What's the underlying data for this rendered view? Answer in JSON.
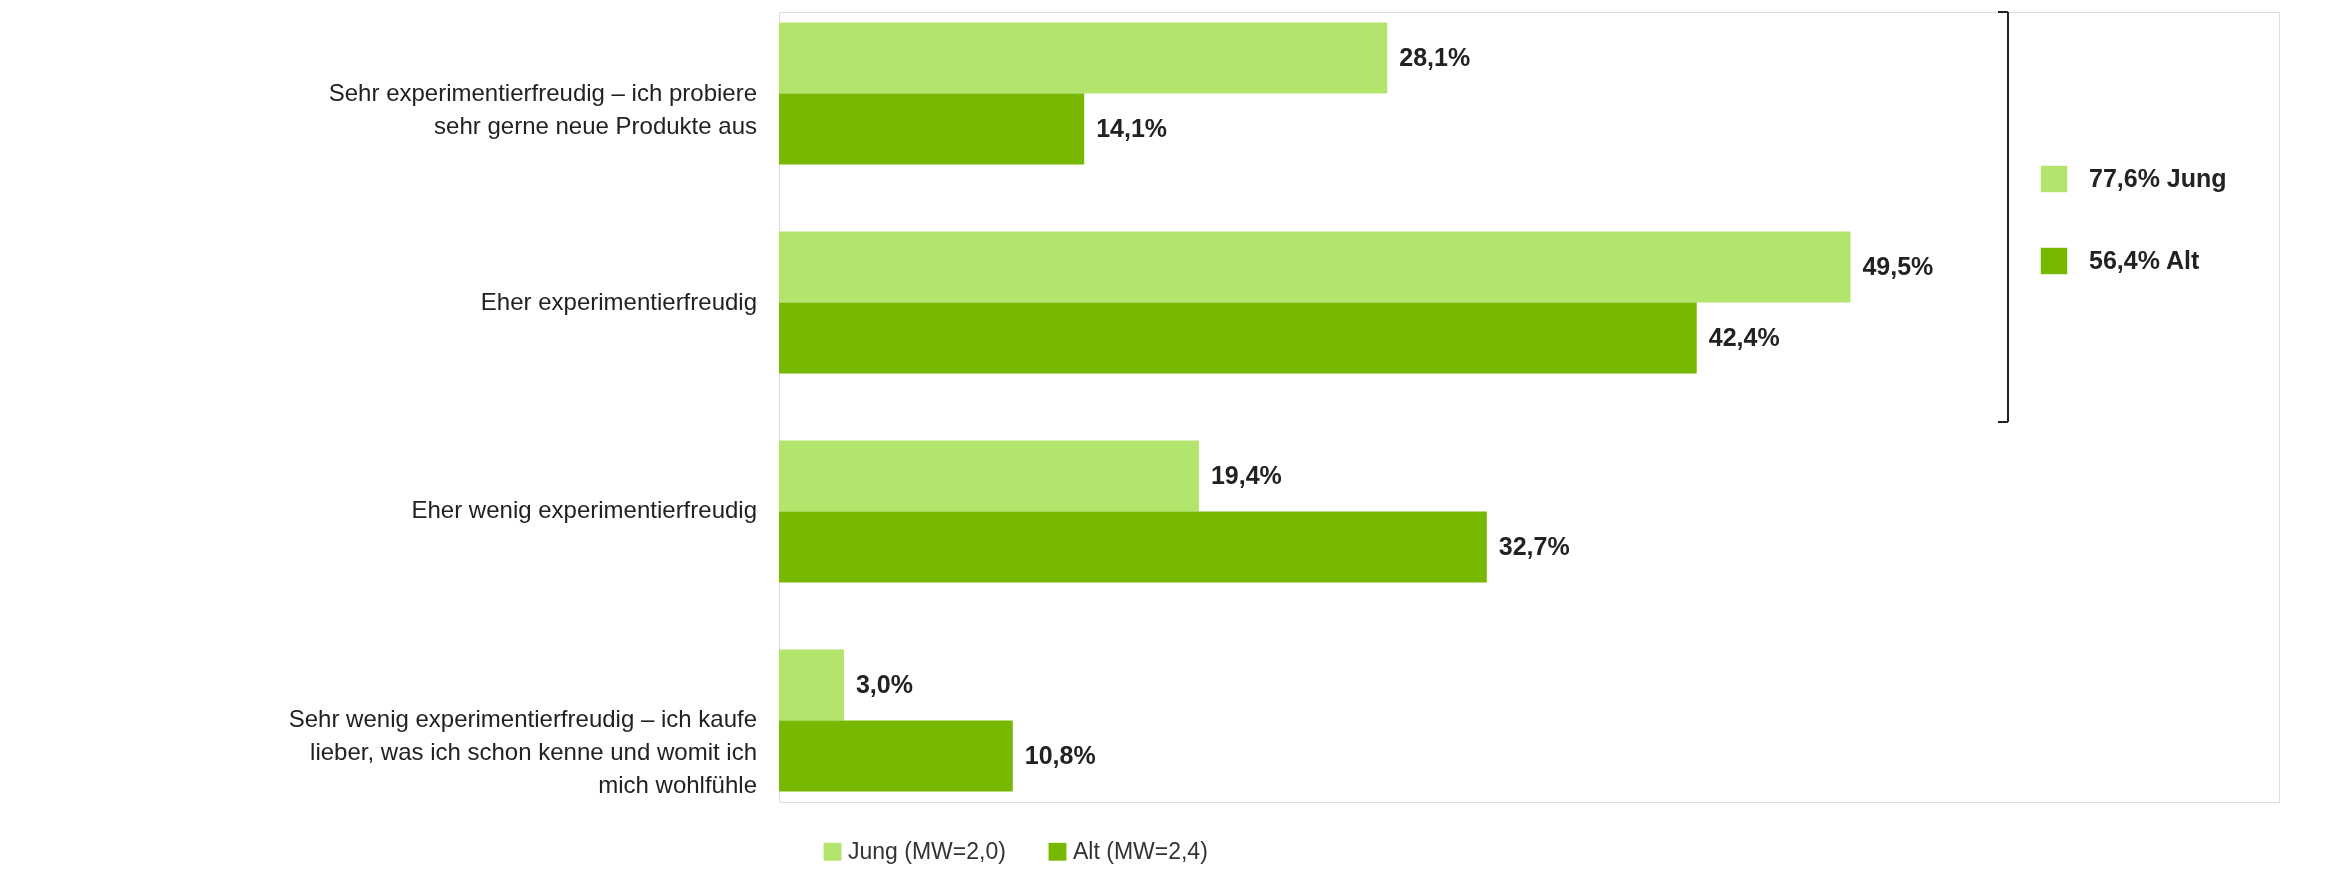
{
  "chart_data": {
    "type": "bar",
    "orientation": "horizontal",
    "categories": [
      "Sehr experimentierfreudig – ich probiere sehr gerne neue Produkte aus",
      "Eher experimentierfreudig",
      "Eher wenig experimentierfreudig",
      "Sehr wenig experimentierfreudig – ich kaufe lieber, was ich schon kenne und womit ich mich wohlfühle"
    ],
    "series": [
      {
        "name": "Jung (MW=2,0)",
        "color": "#b3e46b",
        "values": [
          28.1,
          49.5,
          19.4,
          3.0
        ],
        "value_labels": [
          "28,1%",
          "49,5%",
          "19,4%",
          "3,0%"
        ]
      },
      {
        "name": "Alt (MW=2,4)",
        "color": "#76b900",
        "values": [
          14.1,
          42.4,
          32.7,
          10.8
        ],
        "value_labels": [
          "14,1%",
          "42,4%",
          "32,7%",
          "10,8%"
        ]
      }
    ],
    "annotations": [
      "77,6% Jung",
      "56,4% Alt"
    ],
    "legend": "bottom"
  }
}
